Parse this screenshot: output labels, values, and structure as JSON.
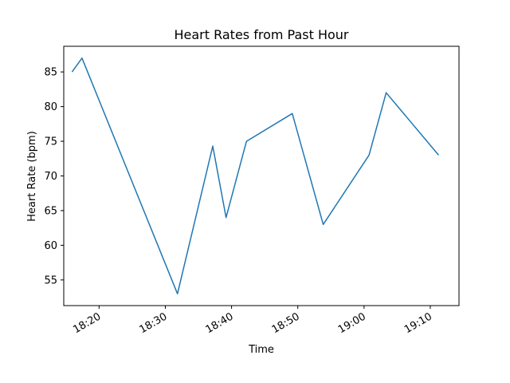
{
  "chart_data": {
    "type": "line",
    "title": "Heart Rates from Past Hour",
    "xlabel": "Time",
    "ylabel": "Heart Rate (bpm)",
    "x_type": "time",
    "xlim": [
      "18:14:40",
      "19:14:20"
    ],
    "ylim": [
      51.3,
      88.7
    ],
    "grid": false,
    "x_ticks": [
      "18:20",
      "18:30",
      "18:40",
      "18:50",
      "19:00",
      "19:10"
    ],
    "y_ticks": [
      55,
      60,
      65,
      70,
      75,
      80,
      85
    ],
    "series": [
      {
        "color": "#1f77b4",
        "points": [
          {
            "t": "18:15:55",
            "v": 85
          },
          {
            "t": "18:17:25",
            "v": 87
          },
          {
            "t": "18:31:50",
            "v": 53
          },
          {
            "t": "18:37:10",
            "v": 74.3
          },
          {
            "t": "18:39:10",
            "v": 64
          },
          {
            "t": "18:42:15",
            "v": 75
          },
          {
            "t": "18:49:10",
            "v": 79
          },
          {
            "t": "18:53:50",
            "v": 63
          },
          {
            "t": "19:00:45",
            "v": 73
          },
          {
            "t": "19:03:20",
            "v": 82
          },
          {
            "t": "19:11:15",
            "v": 73
          }
        ]
      }
    ]
  }
}
